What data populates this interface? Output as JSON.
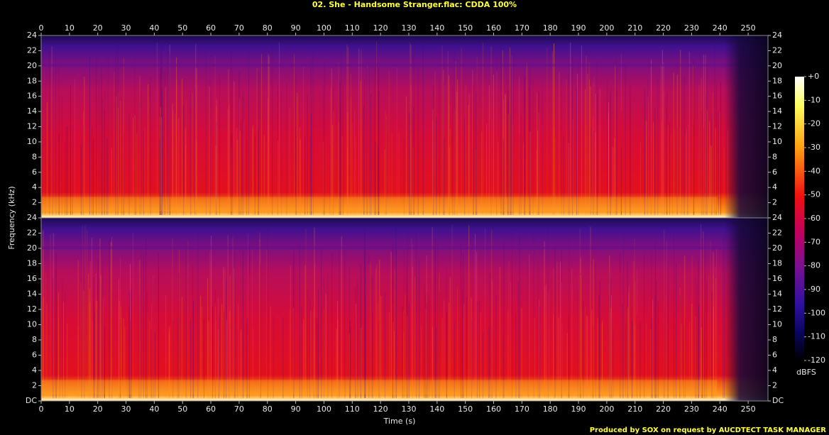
{
  "chart_data": {
    "type": "spectrogram",
    "title": "02. She - Handsome Stranger.flac: CDDA 100%",
    "x_label": "Time (s)",
    "y_label": "Frequency (kHz)",
    "xlim": [
      0,
      257
    ],
    "xticks": [
      0,
      10,
      20,
      30,
      40,
      50,
      60,
      70,
      80,
      90,
      100,
      110,
      120,
      130,
      140,
      150,
      160,
      170,
      180,
      190,
      200,
      210,
      220,
      230,
      240,
      250
    ],
    "panels": [
      {
        "ylim": [
          0,
          24
        ],
        "yticks": [
          2,
          4,
          6,
          8,
          10,
          12,
          14,
          16,
          18,
          20,
          22,
          24
        ]
      },
      {
        "ylim": [
          0,
          24
        ],
        "yticks": [
          {
            "value": 0,
            "label": "DC"
          },
          2,
          4,
          6,
          8,
          10,
          12,
          14,
          16,
          18,
          20,
          22,
          24
        ]
      }
    ],
    "colorbar": {
      "label": "dBFS",
      "clim": [
        -120,
        0
      ],
      "ticks": [
        {
          "value": 0,
          "label": "+0"
        },
        -10,
        -20,
        -30,
        -40,
        -50,
        -60,
        -70,
        -80,
        -90,
        -100,
        -110,
        -120
      ]
    },
    "footer": "Produced by SOX on request by AUCDTECT TASK MANAGER"
  }
}
